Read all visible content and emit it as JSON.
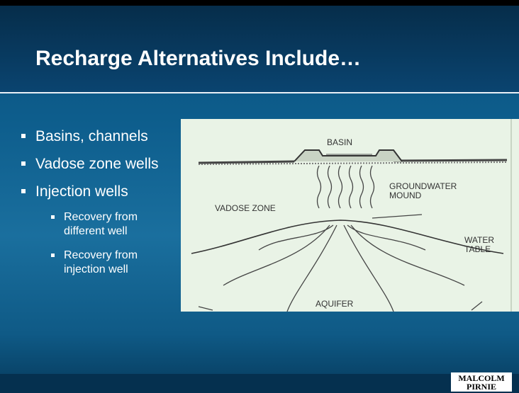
{
  "slide": {
    "title": "Recharge Alternatives Include…",
    "bullets": [
      {
        "text": "Basins, channels"
      },
      {
        "text": "Vadose zone wells"
      },
      {
        "text": "Injection wells",
        "sub": [
          "Recovery from different well",
          "Recovery from injection well"
        ]
      }
    ],
    "diagram": {
      "basin": "BASIN",
      "mound": [
        "GROUNDWATER",
        "MOUND"
      ],
      "vadose": "VADOSE ZONE",
      "water_table": [
        "WATER",
        "TABLE"
      ],
      "aquifer": "AQUIFER"
    },
    "logo": [
      "MALCOLM",
      "PIRNIE"
    ]
  }
}
